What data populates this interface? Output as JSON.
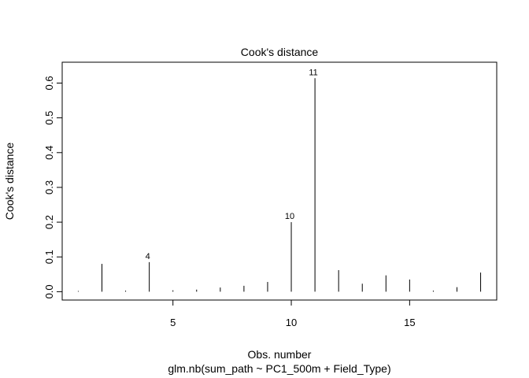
{
  "chart_data": {
    "type": "bar",
    "title": "Cook's distance",
    "xlabel": "Obs. number",
    "ylabel": "Cook's distance",
    "subtitle": "glm.nb(sum_path ~ PC1_500m + Field_Type)",
    "xlim": [
      0.32,
      18.68
    ],
    "ylim": [
      -0.024,
      0.66
    ],
    "x_ticks": [
      5,
      10,
      15
    ],
    "y_ticks": [
      0.0,
      0.1,
      0.2,
      0.3,
      0.4,
      0.5,
      0.6
    ],
    "x": [
      1,
      2,
      3,
      4,
      5,
      6,
      7,
      8,
      9,
      10,
      11,
      12,
      13,
      14,
      15,
      16,
      17,
      18
    ],
    "values": [
      0.002,
      0.08,
      0.003,
      0.085,
      0.004,
      0.006,
      0.012,
      0.017,
      0.028,
      0.2,
      0.614,
      0.062,
      0.023,
      0.047,
      0.035,
      0.003,
      0.013,
      0.055
    ],
    "labeled_points": [
      {
        "x": 4,
        "label": "4"
      },
      {
        "x": 10,
        "label": "10"
      },
      {
        "x": 11,
        "label": "11"
      }
    ],
    "grid": false,
    "legend": "none"
  }
}
